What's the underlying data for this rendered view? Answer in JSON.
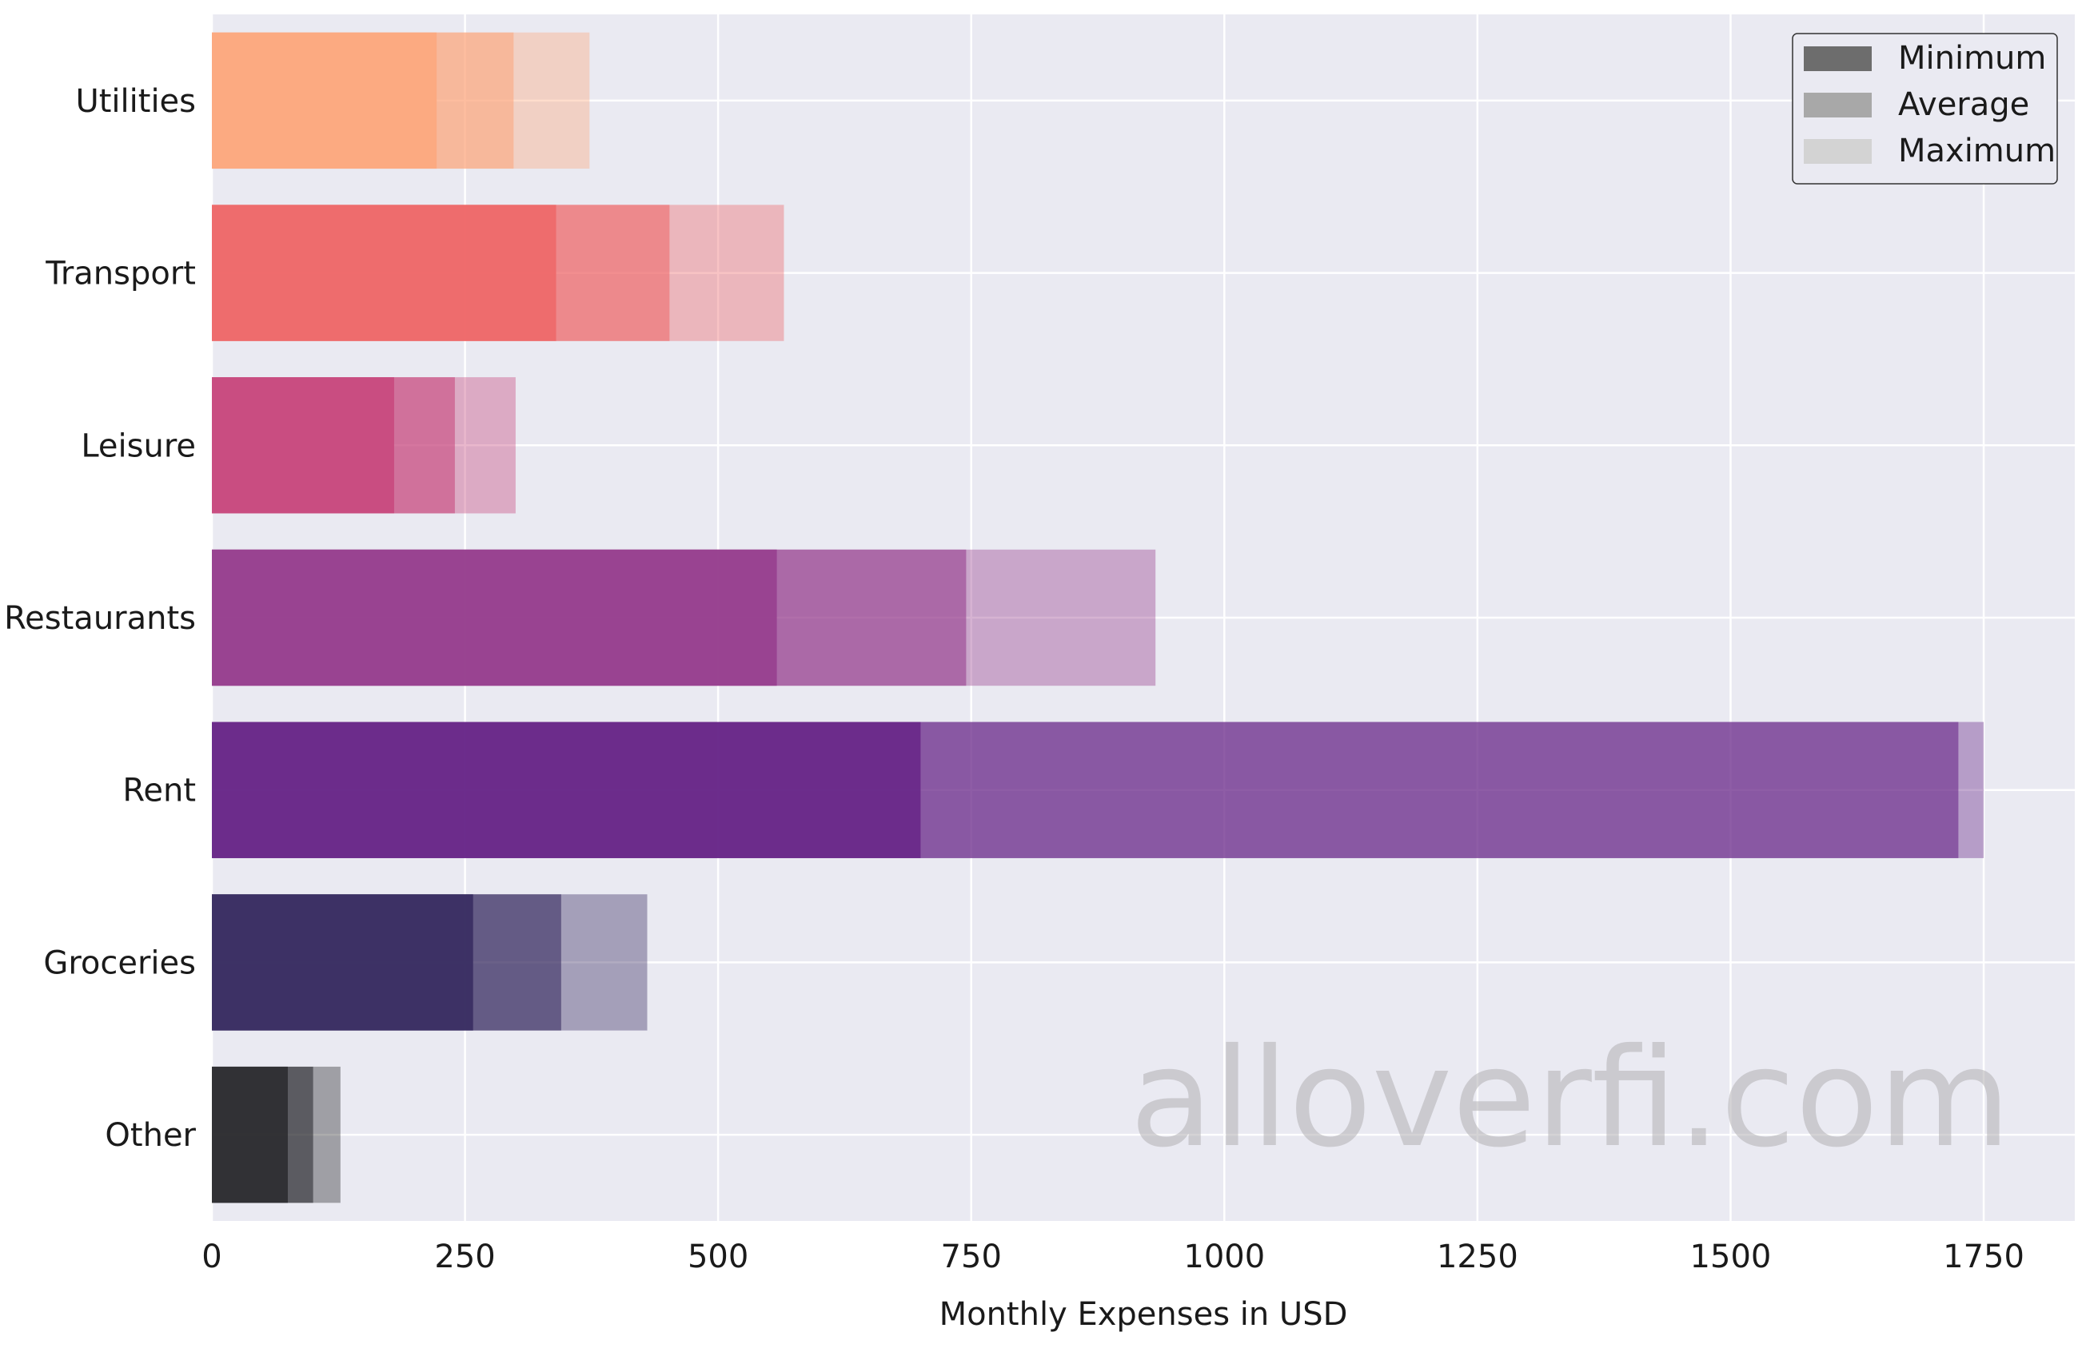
{
  "chart_data": {
    "type": "bar",
    "orientation": "horizontal",
    "categories": [
      "Other",
      "Groceries",
      "Rent",
      "Restaurants",
      "Leisure",
      "Transport",
      "Utilities"
    ],
    "series": [
      {
        "name": "Minimum",
        "values": [
          75,
          258,
          700,
          558,
          180,
          340,
          222
        ]
      },
      {
        "name": "Average",
        "values": [
          100,
          345,
          1725,
          745,
          240,
          452,
          298
        ]
      },
      {
        "name": "Maximum",
        "values": [
          127,
          430,
          1750,
          932,
          300,
          565,
          373
        ]
      }
    ],
    "bar_colors": [
      "#2f2f33",
      "#3b2f63",
      "#6a2a8a",
      "#98418f",
      "#c84b80",
      "#ee6a6c",
      "#fca980"
    ],
    "series_opacity": [
      0.95,
      0.6,
      0.4
    ],
    "legend_colors": [
      "#6d6d6d",
      "#a8a8a8",
      "#d3d3d3"
    ],
    "xlabel": "Monthly Expenses in USD",
    "ylabel": "",
    "xlim": [
      0,
      1840
    ],
    "xticks": [
      0,
      250,
      500,
      750,
      1000,
      1250,
      1500,
      1750
    ],
    "xtick_labels": [
      "0",
      "250",
      "500",
      "750",
      "1000",
      "1250",
      "1500",
      "1750"
    ],
    "grid": true,
    "legend": "top-right",
    "background": "#eaeaf2",
    "watermark": "alloverfi.com"
  }
}
